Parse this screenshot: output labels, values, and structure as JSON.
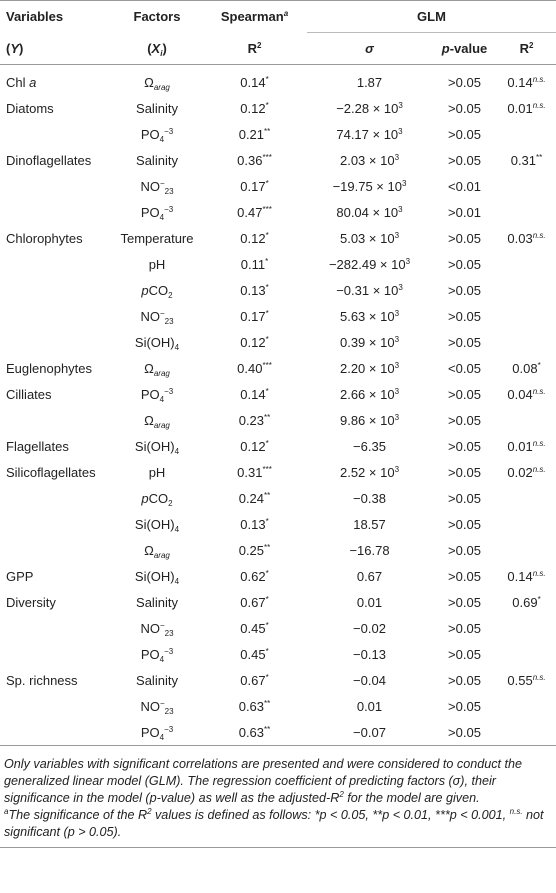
{
  "table": {
    "header": [
      [
        "Variables",
        "Factors",
        [
          "Spearman",
          {
            "supi": "a"
          }
        ],
        "GLM"
      ],
      [
        [
          "(",
          {
            "i": "Y"
          },
          ")"
        ],
        [
          "(",
          {
            "i": "X"
          },
          {
            "subi": "i"
          },
          ")"
        ],
        [
          "R",
          {
            "sup": "2"
          }
        ],
        [
          {
            "i": "σ"
          }
        ],
        [
          {
            "i": "p"
          },
          "-value"
        ],
        [
          "R",
          {
            "sup": "2"
          }
        ]
      ]
    ],
    "rows": [
      [
        [
          "Chl ",
          {
            "i": "a"
          }
        ],
        [
          "Ω",
          {
            "subi": "arag"
          }
        ],
        [
          "0.14",
          {
            "sup": "*"
          }
        ],
        "1.87",
        ">0.05",
        [
          "0.14",
          {
            "supi": "n.s."
          }
        ]
      ],
      [
        "Diatoms",
        "Salinity",
        [
          "0.12",
          {
            "sup": "*"
          }
        ],
        [
          "−2.28 × 10",
          {
            "sup": "3"
          }
        ],
        ">0.05",
        [
          "0.01",
          {
            "supi": "n.s."
          }
        ]
      ],
      [
        null,
        [
          "PO",
          {
            "sub": "4"
          },
          {
            "sup": "−3"
          }
        ],
        [
          "0.21",
          {
            "sup": "**"
          }
        ],
        [
          "74.17 × 10",
          {
            "sup": "3"
          }
        ],
        ">0.05",
        null
      ],
      [
        "Dinoflagellates",
        "Salinity",
        [
          "0.36",
          {
            "sup": "***"
          }
        ],
        [
          "2.03 × 10",
          {
            "sup": "3"
          }
        ],
        ">0.05",
        [
          "0.31",
          {
            "sup": "**"
          }
        ]
      ],
      [
        null,
        [
          "NO",
          {
            "sup": "−"
          },
          {
            "sub": "23"
          }
        ],
        [
          "0.17",
          {
            "sup": "*"
          }
        ],
        [
          "−19.75 × 10",
          {
            "sup": "3"
          }
        ],
        "<0.01",
        null
      ],
      [
        null,
        [
          "PO",
          {
            "sub": "4"
          },
          {
            "sup": "−3"
          }
        ],
        [
          "0.47",
          {
            "sup": "***"
          }
        ],
        [
          "80.04 × 10",
          {
            "sup": "3"
          }
        ],
        ">0.01",
        null
      ],
      [
        "Chlorophytes",
        "Temperature",
        [
          "0.12",
          {
            "sup": "*"
          }
        ],
        [
          "5.03 × 10",
          {
            "sup": "3"
          }
        ],
        ">0.05",
        [
          "0.03",
          {
            "supi": "n.s."
          }
        ]
      ],
      [
        null,
        "pH",
        [
          "0.11",
          {
            "sup": "*"
          }
        ],
        [
          "−282.49 × 10",
          {
            "sup": "3"
          }
        ],
        ">0.05",
        null
      ],
      [
        null,
        [
          {
            "i": "p"
          },
          "CO",
          {
            "sub": "2"
          }
        ],
        [
          "0.13",
          {
            "sup": "*"
          }
        ],
        [
          "−0.31 × 10",
          {
            "sup": "3"
          }
        ],
        ">0.05",
        null
      ],
      [
        null,
        [
          "NO",
          {
            "sup": "−"
          },
          {
            "sub": "23"
          }
        ],
        [
          "0.17",
          {
            "sup": "*"
          }
        ],
        [
          "5.63 × 10",
          {
            "sup": "3"
          }
        ],
        ">0.05",
        null
      ],
      [
        null,
        [
          "Si(OH)",
          {
            "sub": "4"
          }
        ],
        [
          "0.12",
          {
            "sup": "*"
          }
        ],
        [
          "0.39 × 10",
          {
            "sup": "3"
          }
        ],
        ">0.05",
        null
      ],
      [
        "Euglenophytes",
        [
          "Ω",
          {
            "subi": "arag"
          }
        ],
        [
          "0.40",
          {
            "sup": "***"
          }
        ],
        [
          "2.20 × 10",
          {
            "sup": "3"
          }
        ],
        "<0.05",
        [
          "0.08",
          {
            "sup": "*"
          }
        ]
      ],
      [
        "Cilliates",
        [
          "PO",
          {
            "sub": "4"
          },
          {
            "sup": "−3"
          }
        ],
        [
          "0.14",
          {
            "sup": "*"
          }
        ],
        [
          "2.66 × 10",
          {
            "sup": "3"
          }
        ],
        ">0.05",
        [
          "0.04",
          {
            "supi": "n.s."
          }
        ]
      ],
      [
        null,
        [
          "Ω",
          {
            "subi": "arag"
          }
        ],
        [
          "0.23",
          {
            "sup": "**"
          }
        ],
        [
          "9.86 × 10",
          {
            "sup": "3"
          }
        ],
        ">0.05",
        null
      ],
      [
        "Flagellates",
        [
          "Si(OH)",
          {
            "sub": "4"
          }
        ],
        [
          "0.12",
          {
            "sup": "*"
          }
        ],
        "−6.35",
        ">0.05",
        [
          "0.01",
          {
            "supi": "n.s."
          }
        ]
      ],
      [
        "Silicoflagellates",
        "pH",
        [
          "0.31",
          {
            "sup": "***"
          }
        ],
        [
          "2.52 × 10",
          {
            "sup": "3"
          }
        ],
        ">0.05",
        [
          "0.02",
          {
            "supi": "n.s."
          }
        ]
      ],
      [
        null,
        [
          {
            "i": "p"
          },
          "CO",
          {
            "sub": "2"
          }
        ],
        [
          "0.24",
          {
            "sup": "**"
          }
        ],
        "−0.38",
        ">0.05",
        null
      ],
      [
        null,
        [
          "Si(OH)",
          {
            "sub": "4"
          }
        ],
        [
          "0.13",
          {
            "sup": "*"
          }
        ],
        "18.57",
        ">0.05",
        null
      ],
      [
        null,
        [
          "Ω",
          {
            "subi": "arag"
          }
        ],
        [
          "0.25",
          {
            "sup": "**"
          }
        ],
        "−16.78",
        ">0.05",
        null
      ],
      [
        "GPP",
        [
          "Si(OH)",
          {
            "sub": "4"
          }
        ],
        [
          "0.62",
          {
            "sup": "*"
          }
        ],
        "0.67",
        ">0.05",
        [
          "0.14",
          {
            "supi": "n.s."
          }
        ]
      ],
      [
        "Diversity",
        "Salinity",
        [
          "0.67",
          {
            "sup": "*"
          }
        ],
        "0.01",
        ">0.05",
        [
          "0.69",
          {
            "sup": "*"
          }
        ]
      ],
      [
        null,
        [
          "NO",
          {
            "sup": "−"
          },
          {
            "sub": "23"
          }
        ],
        [
          "0.45",
          {
            "sup": "*"
          }
        ],
        "−0.02",
        ">0.05",
        null
      ],
      [
        null,
        [
          "PO",
          {
            "sub": "4"
          },
          {
            "sup": "−3"
          }
        ],
        [
          "0.45",
          {
            "sup": "*"
          }
        ],
        "−0.13",
        ">0.05",
        null
      ],
      [
        "Sp. richness",
        "Salinity",
        [
          "0.67",
          {
            "sup": "*"
          }
        ],
        "−0.04",
        ">0.05",
        [
          "0.55",
          {
            "supi": "n.s."
          }
        ]
      ],
      [
        null,
        [
          "NO",
          {
            "sup": "−"
          },
          {
            "sub": "23"
          }
        ],
        [
          "0.63",
          {
            "sup": "**"
          }
        ],
        "0.01",
        ">0.05",
        null
      ],
      [
        null,
        [
          "PO",
          {
            "sub": "4"
          },
          {
            "sup": "−3"
          }
        ],
        [
          "0.63",
          {
            "sup": "**"
          }
        ],
        "−0.07",
        ">0.05",
        null
      ]
    ],
    "footnotes": [
      [
        "Only variables with significant correlations are presented and were considered to conduct the generalized linear model (GLM). The regression coefficient of predicting factors (σ), their significance in the model (p-value) as well as the adjusted-R",
        {
          "sup": "2"
        },
        " for the model are given."
      ],
      [
        {
          "sup": "a"
        },
        "The significance of the R",
        {
          "sup": "2"
        },
        " values is defined as follows: *p < 0.05, **p < 0.01, ***p < 0.001, ",
        {
          "sup": "n.s."
        },
        " not significant (p > 0.05)."
      ]
    ]
  }
}
